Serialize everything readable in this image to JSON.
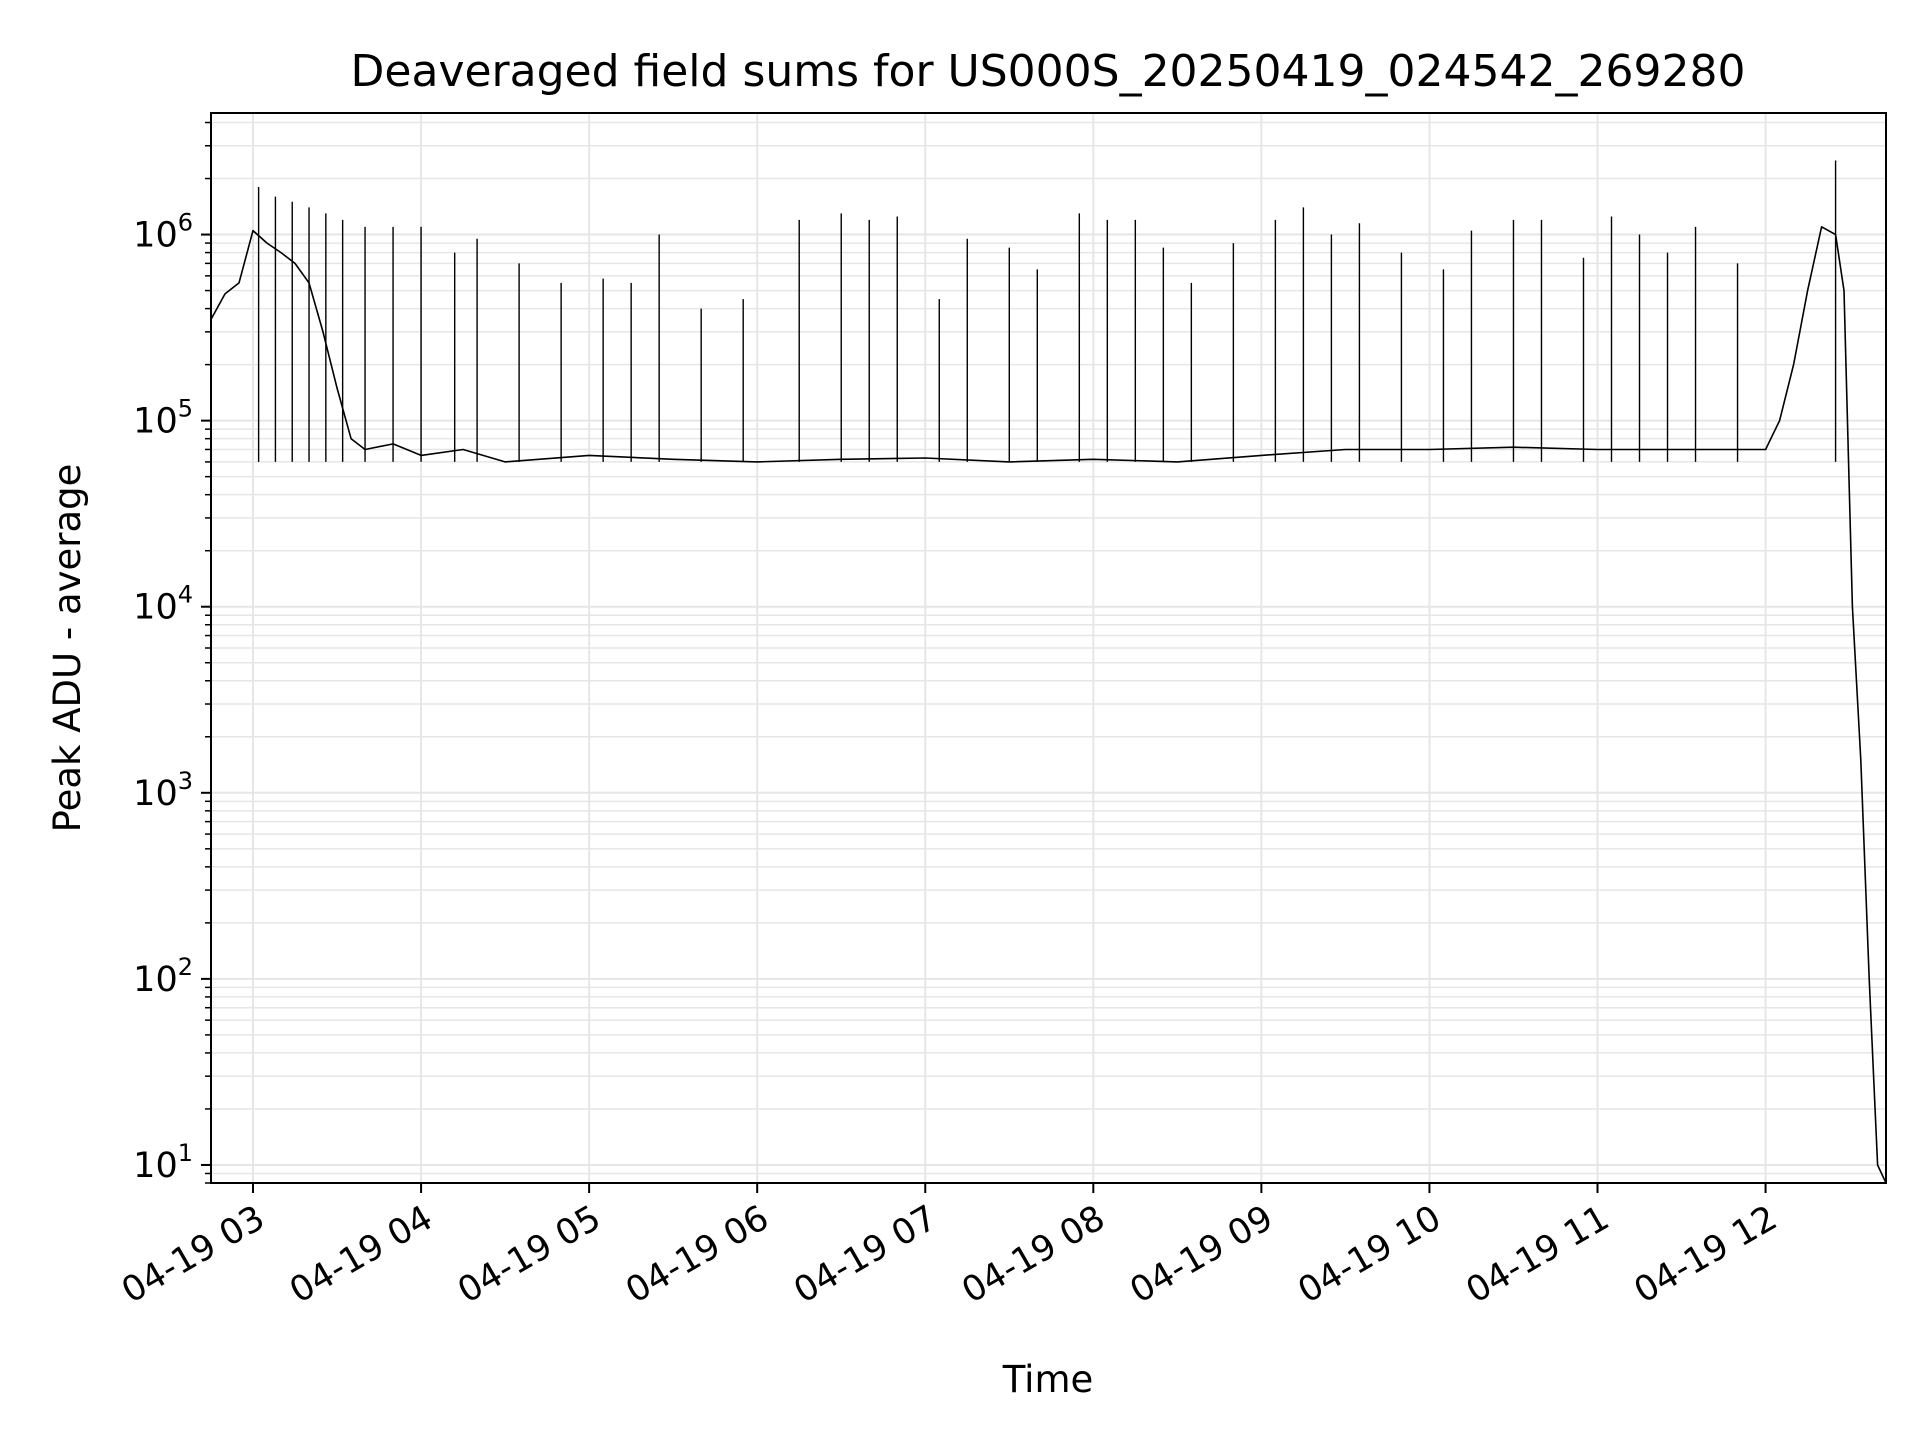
{
  "chart_data": {
    "type": "line",
    "title": "Deaveraged field sums for US000S_20250419_024542_269280",
    "xlabel": "Time",
    "ylabel": "Peak ADU - average",
    "yscale": "log",
    "ylim": [
      8,
      4500000
    ],
    "xlim": [
      "04-19 02:45",
      "04-19 12:43"
    ],
    "grid": true,
    "x_ticks": [
      "04-19 03",
      "04-19 04",
      "04-19 05",
      "04-19 06",
      "04-19 07",
      "04-19 08",
      "04-19 09",
      "04-19 10",
      "04-19 11",
      "04-19 12"
    ],
    "y_ticks": [
      {
        "base": "10",
        "exp": "1"
      },
      {
        "base": "10",
        "exp": "2"
      },
      {
        "base": "10",
        "exp": "3"
      },
      {
        "base": "10",
        "exp": "4"
      },
      {
        "base": "10",
        "exp": "5"
      },
      {
        "base": "10",
        "exp": "6"
      }
    ],
    "line_color": "#000000",
    "grid_color": "#e6e6e6",
    "series": [
      {
        "x": [
          "04-19 02:45",
          "04-19 02:50",
          "04-19 02:55",
          "04-19 03:00",
          "04-19 03:05",
          "04-19 03:10",
          "04-19 03:15",
          "04-19 03:20",
          "04-19 03:25",
          "04-19 03:30",
          "04-19 03:35",
          "04-19 03:40",
          "04-19 03:50",
          "04-19 04:00",
          "04-19 04:15",
          "04-19 04:30",
          "04-19 05:00",
          "04-19 05:30",
          "04-19 06:00",
          "04-19 06:30",
          "04-19 07:00",
          "04-19 07:30",
          "04-19 08:00",
          "04-19 08:30",
          "04-19 09:00",
          "04-19 09:30",
          "04-19 10:00",
          "04-19 10:30",
          "04-19 11:00",
          "04-19 11:30",
          "04-19 12:00",
          "04-19 12:05",
          "04-19 12:10",
          "04-19 12:15",
          "04-19 12:20",
          "04-19 12:25",
          "04-19 12:28",
          "04-19 12:31",
          "04-19 12:34",
          "04-19 12:37",
          "04-19 12:40",
          "04-19 12:43"
        ],
        "y": [
          350000,
          480000,
          550000,
          1050000,
          900000,
          800000,
          700000,
          550000,
          300000,
          150000,
          80000,
          70000,
          75000,
          65000,
          70000,
          60000,
          65000,
          62000,
          60000,
          62000,
          63000,
          60000,
          62000,
          60000,
          65000,
          70000,
          70000,
          72000,
          70000,
          70000,
          70000,
          100000,
          200000,
          500000,
          1100000,
          1000000,
          500000,
          10000,
          1500,
          100,
          10,
          8
        ]
      }
    ],
    "spikes": [
      {
        "x": "04-19 03:02",
        "y": 1800000
      },
      {
        "x": "04-19 03:08",
        "y": 1600000
      },
      {
        "x": "04-19 03:14",
        "y": 1500000
      },
      {
        "x": "04-19 03:20",
        "y": 1400000
      },
      {
        "x": "04-19 03:26",
        "y": 1300000
      },
      {
        "x": "04-19 03:32",
        "y": 1200000
      },
      {
        "x": "04-19 03:40",
        "y": 1100000
      },
      {
        "x": "04-19 03:50",
        "y": 1100000
      },
      {
        "x": "04-19 04:00",
        "y": 1100000
      },
      {
        "x": "04-19 04:12",
        "y": 800000
      },
      {
        "x": "04-19 04:20",
        "y": 950000
      },
      {
        "x": "04-19 04:35",
        "y": 700000
      },
      {
        "x": "04-19 04:50",
        "y": 550000
      },
      {
        "x": "04-19 05:05",
        "y": 580000
      },
      {
        "x": "04-19 05:15",
        "y": 550000
      },
      {
        "x": "04-19 05:25",
        "y": 1000000
      },
      {
        "x": "04-19 05:40",
        "y": 400000
      },
      {
        "x": "04-19 05:55",
        "y": 450000
      },
      {
        "x": "04-19 06:15",
        "y": 1200000
      },
      {
        "x": "04-19 06:30",
        "y": 1300000
      },
      {
        "x": "04-19 06:40",
        "y": 1200000
      },
      {
        "x": "04-19 06:50",
        "y": 1250000
      },
      {
        "x": "04-19 07:05",
        "y": 450000
      },
      {
        "x": "04-19 07:15",
        "y": 950000
      },
      {
        "x": "04-19 07:30",
        "y": 850000
      },
      {
        "x": "04-19 07:40",
        "y": 650000
      },
      {
        "x": "04-19 07:55",
        "y": 1300000
      },
      {
        "x": "04-19 08:05",
        "y": 1200000
      },
      {
        "x": "04-19 08:15",
        "y": 1200000
      },
      {
        "x": "04-19 08:25",
        "y": 850000
      },
      {
        "x": "04-19 08:35",
        "y": 550000
      },
      {
        "x": "04-19 08:50",
        "y": 900000
      },
      {
        "x": "04-19 09:05",
        "y": 1200000
      },
      {
        "x": "04-19 09:15",
        "y": 1400000
      },
      {
        "x": "04-19 09:25",
        "y": 1000000
      },
      {
        "x": "04-19 09:35",
        "y": 1150000
      },
      {
        "x": "04-19 09:50",
        "y": 800000
      },
      {
        "x": "04-19 10:05",
        "y": 650000
      },
      {
        "x": "04-19 10:15",
        "y": 1050000
      },
      {
        "x": "04-19 10:30",
        "y": 1200000
      },
      {
        "x": "04-19 10:40",
        "y": 1200000
      },
      {
        "x": "04-19 10:55",
        "y": 750000
      },
      {
        "x": "04-19 11:05",
        "y": 1250000
      },
      {
        "x": "04-19 11:15",
        "y": 1000000
      },
      {
        "x": "04-19 11:25",
        "y": 800000
      },
      {
        "x": "04-19 11:35",
        "y": 1100000
      },
      {
        "x": "04-19 11:50",
        "y": 700000
      },
      {
        "x": "04-19 12:25",
        "y": 2500000
      }
    ]
  }
}
